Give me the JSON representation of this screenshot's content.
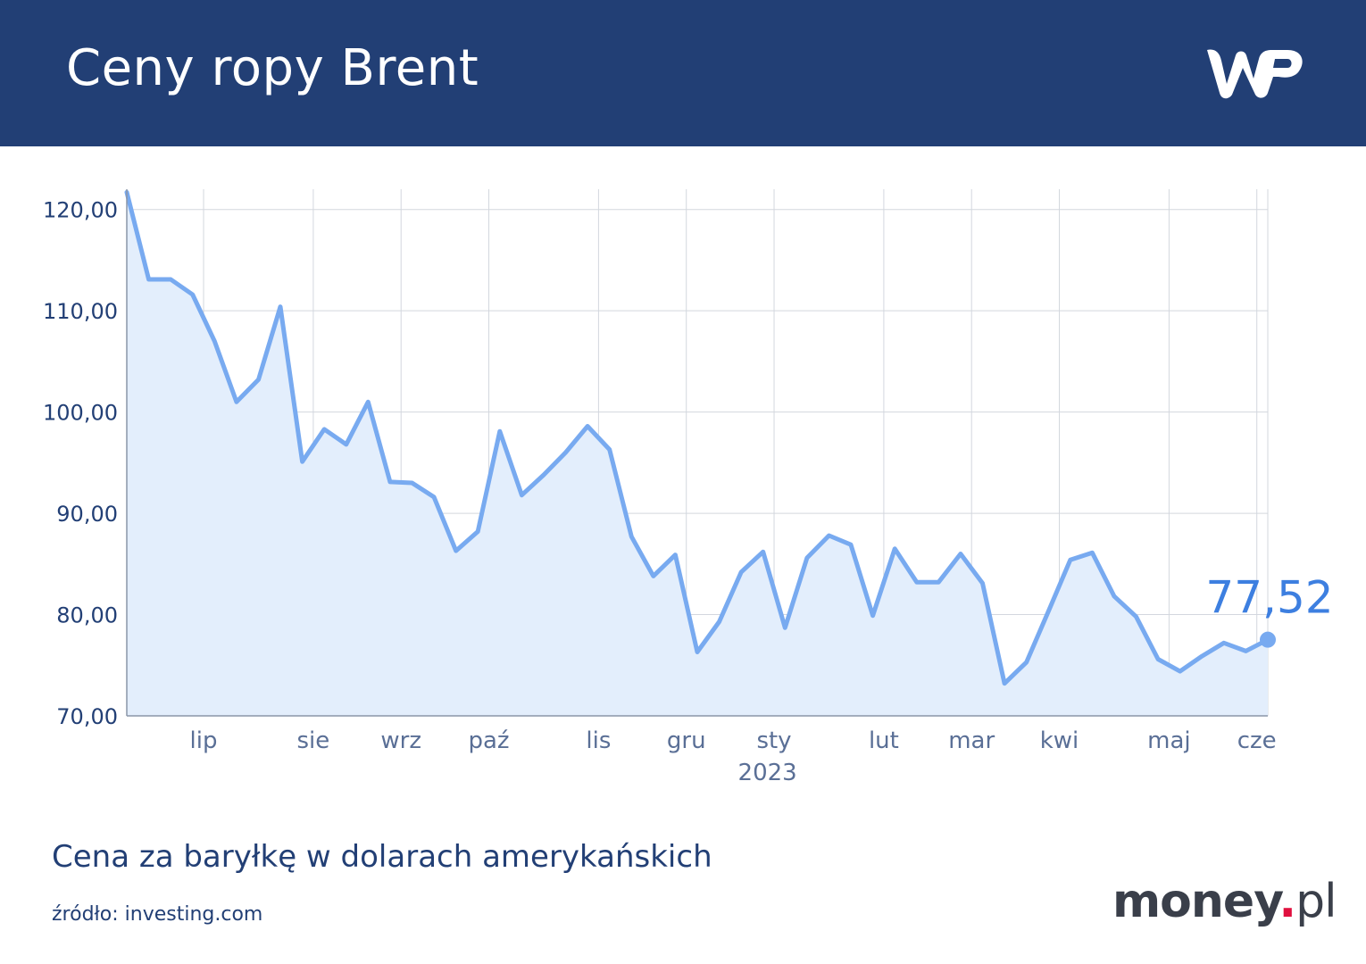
{
  "header": {
    "title": "Ceny ropy Brent",
    "bg_color": "#223f75"
  },
  "footer": {
    "subtitle": "Cena za baryłkę w dolarach amerykańskich",
    "source": "źródło: investing.com",
    "brand_main": "money",
    "brand_dot": ".",
    "brand_tld": "pl"
  },
  "chart_data": {
    "type": "area",
    "title": "Ceny ropy Brent",
    "xlabel": "",
    "ylabel": "",
    "ylim": [
      70,
      122
    ],
    "yticks": [
      70,
      80,
      90,
      100,
      110,
      120
    ],
    "ytick_labels": [
      "70,00",
      "80,00",
      "90,00",
      "100,00",
      "110,00",
      "120,00"
    ],
    "x_month_ticks": [
      {
        "label": "lip",
        "pos": 3.5
      },
      {
        "label": "sie",
        "pos": 8.5
      },
      {
        "label": "wrz",
        "pos": 12.5
      },
      {
        "label": "paź",
        "pos": 16.5
      },
      {
        "label": "lis",
        "pos": 21.5
      },
      {
        "label": "gru",
        "pos": 25.5
      },
      {
        "label": "sty",
        "pos": 29.5
      },
      {
        "label": "lut",
        "pos": 34.5
      },
      {
        "label": "mar",
        "pos": 38.5
      },
      {
        "label": "kwi",
        "pos": 42.5
      },
      {
        "label": "maj",
        "pos": 47.5
      },
      {
        "label": "cze",
        "pos": 51.5
      }
    ],
    "year_label": {
      "label": "2023",
      "pos": 29.2
    },
    "series": [
      {
        "color": "#78aaf0",
        "fill": "#e3eefc",
        "values": [
          121.7,
          113.1,
          113.1,
          111.6,
          107.0,
          101.0,
          103.2,
          110.4,
          95.1,
          98.3,
          96.8,
          101.0,
          93.1,
          93.0,
          91.6,
          86.3,
          88.2,
          98.1,
          91.8,
          93.8,
          96.0,
          98.6,
          96.3,
          87.7,
          83.8,
          85.9,
          76.3,
          79.3,
          84.2,
          86.2,
          78.7,
          85.6,
          87.8,
          86.9,
          79.9,
          86.5,
          83.2,
          83.2,
          86.0,
          83.1,
          73.2,
          75.3,
          80.3,
          85.4,
          86.1,
          81.8,
          79.8,
          75.6,
          74.4,
          75.9,
          77.2,
          76.4,
          77.52
        ]
      }
    ],
    "last_value_label": "77,52",
    "grid": true
  }
}
